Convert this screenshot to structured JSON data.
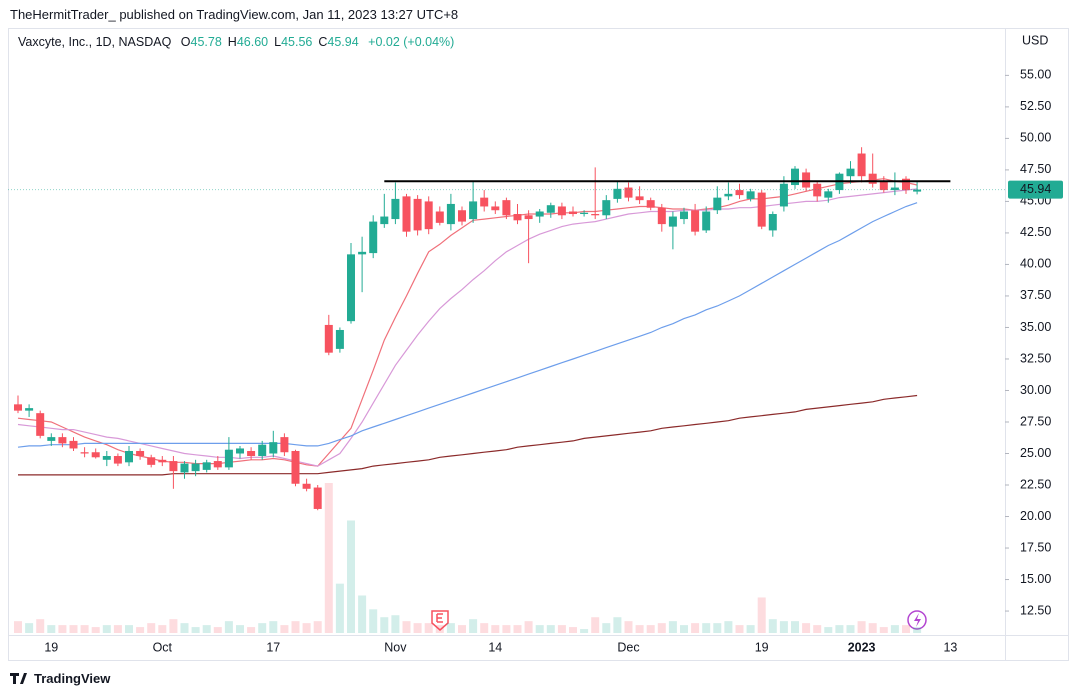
{
  "header": {
    "publisher": "TheHermitTrader_ published on TradingView.com, Jan 11, 2023 13:27 UTC+8",
    "symbol": "Vaxcyte, Inc., 1D, NASDAQ",
    "ohlc": [
      {
        "key": "O",
        "value": "45.78"
      },
      {
        "key": "H",
        "value": "46.60"
      },
      {
        "key": "L",
        "value": "45.56"
      },
      {
        "key": "C",
        "value": "45.94"
      }
    ],
    "change": "+0.02 (+0.04%)"
  },
  "footer": {
    "brand": "TradingView"
  },
  "chart_data": {
    "type": "candlestick",
    "currency": "USD",
    "up_color": "#22ab94",
    "down_color": "#f7525f",
    "categories": [
      null,
      null,
      null,
      "19",
      null,
      null,
      null,
      null,
      null,
      null,
      null,
      null,
      null,
      "Oct",
      null,
      null,
      null,
      null,
      null,
      null,
      null,
      null,
      null,
      "17",
      null,
      null,
      null,
      null,
      null,
      null,
      null,
      null,
      null,
      null,
      "Nov",
      null,
      null,
      null,
      null,
      null,
      null,
      null,
      null,
      "14",
      null,
      null,
      null,
      null,
      null,
      null,
      null,
      null,
      null,
      null,
      null,
      "Dec",
      null,
      null,
      null,
      null,
      null,
      null,
      null,
      null,
      null,
      null,
      null,
      "19",
      null,
      null,
      null,
      null,
      null,
      null,
      null,
      null,
      "2023",
      null,
      null,
      null,
      null,
      null,
      null,
      null,
      "13"
    ],
    "open": [
      28.9,
      28.4,
      28.2,
      26.0,
      26.3,
      26.0,
      25.1,
      25.1,
      24.5,
      24.8,
      24.3,
      25.2,
      24.7,
      24.5,
      24.4,
      23.5,
      23.6,
      23.7,
      24.4,
      23.9,
      25.0,
      25.2,
      24.8,
      25.0,
      26.3,
      25.2,
      22.6,
      22.3,
      35.2,
      33.3,
      35.5,
      40.8,
      40.9,
      43.2,
      43.6,
      45.4,
      45.2,
      45.0,
      44.2,
      43.2,
      44.3,
      43.6,
      45.3,
      44.6,
      45.1,
      44.0,
      43.9,
      43.8,
      44.1,
      44.6,
      44.2,
      44.0,
      44.0,
      43.9,
      45.2,
      46.1,
      45.4,
      45.1,
      44.5,
      43.0,
      43.6,
      44.3,
      42.7,
      44.3,
      45.4,
      45.9,
      45.2,
      45.7,
      42.7,
      44.6,
      46.3,
      47.3,
      46.4,
      45.3,
      45.9,
      47.0,
      48.8,
      47.2,
      46.6,
      45.9,
      46.8,
      45.78,
      null,
      null,
      null
    ],
    "high": [
      29.6,
      28.9,
      28.4,
      26.6,
      26.6,
      26.3,
      25.5,
      25.4,
      25.2,
      25.0,
      25.6,
      25.4,
      24.9,
      24.8,
      24.8,
      24.4,
      24.5,
      24.5,
      24.8,
      26.3,
      25.6,
      25.5,
      26.0,
      26.8,
      26.6,
      25.3,
      23.0,
      22.5,
      36.0,
      35.0,
      41.7,
      42.2,
      43.9,
      45.6,
      46.5,
      45.6,
      45.5,
      45.4,
      44.6,
      45.6,
      44.6,
      46.6,
      45.9,
      45.0,
      45.3,
      44.8,
      44.3,
      44.4,
      44.9,
      44.9,
      44.6,
      44.3,
      47.7,
      45.5,
      46.6,
      46.5,
      46.2,
      45.3,
      44.8,
      44.2,
      44.5,
      44.8,
      44.6,
      46.2,
      46.5,
      46.4,
      46.0,
      45.9,
      44.2,
      47.0,
      47.8,
      47.6,
      46.6,
      46.0,
      47.3,
      48.2,
      49.3,
      48.8,
      47.0,
      47.3,
      47.0,
      46.6,
      null,
      null,
      null
    ],
    "low": [
      28.2,
      27.9,
      26.2,
      25.6,
      25.5,
      25.2,
      24.7,
      24.6,
      24.0,
      24.0,
      24.0,
      24.5,
      23.9,
      24.0,
      22.2,
      23.0,
      23.2,
      23.5,
      23.7,
      23.7,
      24.6,
      24.5,
      24.5,
      24.7,
      24.8,
      22.4,
      22.0,
      20.5,
      32.8,
      33.0,
      35.3,
      37.8,
      40.5,
      42.9,
      43.2,
      42.2,
      42.3,
      42.4,
      43.1,
      42.7,
      43.1,
      43.3,
      44.2,
      44.0,
      43.6,
      43.2,
      40.1,
      43.3,
      43.7,
      43.6,
      43.8,
      43.8,
      43.6,
      43.6,
      44.9,
      45.0,
      44.8,
      44.3,
      42.6,
      41.2,
      43.2,
      42.3,
      42.5,
      44.0,
      45.1,
      45.2,
      45.0,
      42.8,
      42.2,
      44.2,
      46.0,
      45.8,
      45.0,
      44.9,
      45.6,
      46.4,
      46.5,
      46.1,
      45.7,
      45.5,
      45.6,
      45.56,
      null,
      null,
      null
    ],
    "close": [
      28.4,
      28.6,
      26.4,
      26.3,
      25.8,
      25.4,
      25.0,
      24.7,
      24.8,
      24.2,
      25.2,
      24.8,
      24.1,
      24.3,
      23.6,
      24.2,
      24.2,
      24.3,
      23.9,
      25.3,
      25.4,
      24.8,
      25.7,
      25.9,
      25.1,
      22.6,
      22.2,
      20.6,
      33.0,
      34.8,
      40.8,
      41.0,
      43.4,
      43.8,
      45.2,
      42.6,
      42.7,
      42.8,
      43.3,
      44.8,
      43.4,
      45.0,
      44.6,
      44.3,
      43.9,
      43.5,
      43.6,
      44.2,
      44.7,
      43.9,
      44.0,
      44.1,
      43.9,
      45.1,
      46.0,
      45.3,
      45.1,
      44.5,
      43.2,
      43.8,
      44.2,
      42.6,
      44.2,
      45.3,
      45.6,
      45.5,
      45.8,
      43.0,
      44.0,
      46.4,
      47.6,
      46.1,
      45.4,
      45.8,
      47.2,
      47.6,
      47.0,
      46.4,
      45.9,
      46.1,
      45.9,
      45.94,
      null,
      null,
      null
    ],
    "volume": [
      0.6,
      0.5,
      0.7,
      0.4,
      0.4,
      0.4,
      0.4,
      0.3,
      0.4,
      0.4,
      0.4,
      0.3,
      0.5,
      0.4,
      0.7,
      0.5,
      0.3,
      0.4,
      0.3,
      0.6,
      0.4,
      0.3,
      0.5,
      0.6,
      0.4,
      0.6,
      0.5,
      0.6,
      7.6,
      2.5,
      5.7,
      1.9,
      1.2,
      0.8,
      0.9,
      0.6,
      0.5,
      0.5,
      0.4,
      0.5,
      0.4,
      0.7,
      0.5,
      0.4,
      0.4,
      0.4,
      0.6,
      0.4,
      0.4,
      0.4,
      0.3,
      0.2,
      0.8,
      0.5,
      0.8,
      0.6,
      0.4,
      0.4,
      0.5,
      0.6,
      0.4,
      0.5,
      0.5,
      0.5,
      0.6,
      0.4,
      0.4,
      1.8,
      0.7,
      0.6,
      0.6,
      0.5,
      0.4,
      0.3,
      0.4,
      0.4,
      0.6,
      0.5,
      0.3,
      0.4,
      0.4,
      0.3,
      null,
      null,
      null
    ],
    "series": [
      {
        "color": "#f0707a",
        "values": [
          27.8,
          27.7,
          27.6,
          27.5,
          27.1,
          26.7,
          26.3,
          26.0,
          25.7,
          25.3,
          25.0,
          24.8,
          24.6,
          24.4,
          24.3,
          24.3,
          24.2,
          24.2,
          24.2,
          24.3,
          24.4,
          24.5,
          24.5,
          24.6,
          24.5,
          24.3,
          24.1,
          24.0,
          25.0,
          26.0,
          27.0,
          29.3,
          31.6,
          34.0,
          35.8,
          37.5,
          39.3,
          41.0,
          41.6,
          42.3,
          42.9,
          43.5,
          43.6,
          43.7,
          43.8,
          43.9,
          44.0,
          44.0,
          44.0,
          44.1,
          44.1,
          44.2,
          44.2,
          44.3,
          44.4,
          44.5,
          44.6,
          44.6,
          44.5,
          44.4,
          44.4,
          44.3,
          44.4,
          44.5,
          44.7,
          45.0,
          45.2,
          45.2,
          45.3,
          45.4,
          45.6,
          45.8,
          46.0,
          46.2,
          46.4,
          46.5,
          46.6,
          46.7,
          46.8,
          46.6,
          46.5,
          46.3,
          null,
          null,
          null
        ]
      },
      {
        "color": "#d899d8",
        "values": [
          27.3,
          27.2,
          27.1,
          27.0,
          26.9,
          26.9,
          26.7,
          26.5,
          26.3,
          26.2,
          26.0,
          25.8,
          25.6,
          25.4,
          25.2,
          25.0,
          24.9,
          24.8,
          24.7,
          24.7,
          24.6,
          24.7,
          24.7,
          24.8,
          24.6,
          24.4,
          24.2,
          24.0,
          24.5,
          25.0,
          26.2,
          27.5,
          29.0,
          30.5,
          32.0,
          33.2,
          34.4,
          35.5,
          36.5,
          37.3,
          38.0,
          38.8,
          39.5,
          40.3,
          41.0,
          41.5,
          42.0,
          42.4,
          42.7,
          43.0,
          43.2,
          43.3,
          43.4,
          43.6,
          43.8,
          44.0,
          44.1,
          44.2,
          44.2,
          44.2,
          44.3,
          44.3,
          44.3,
          44.4,
          44.4,
          44.5,
          44.5,
          44.6,
          44.7,
          44.8,
          44.9,
          45.0,
          45.0,
          45.1,
          45.3,
          45.4,
          45.5,
          45.6,
          45.7,
          45.8,
          45.9,
          46.0,
          null,
          null,
          null
        ]
      },
      {
        "color": "#6d9eeb",
        "values": [
          25.5,
          25.6,
          25.6,
          25.7,
          25.7,
          25.7,
          25.8,
          25.8,
          25.8,
          25.8,
          25.8,
          25.8,
          25.8,
          25.8,
          25.8,
          25.8,
          25.8,
          25.8,
          25.8,
          25.8,
          25.8,
          25.8,
          25.8,
          25.8,
          25.8,
          25.7,
          25.6,
          25.6,
          25.8,
          26.1,
          26.4,
          26.8,
          27.1,
          27.4,
          27.7,
          28.0,
          28.3,
          28.6,
          28.9,
          29.2,
          29.5,
          29.8,
          30.1,
          30.4,
          30.7,
          31.0,
          31.3,
          31.6,
          31.9,
          32.2,
          32.5,
          32.8,
          33.1,
          33.4,
          33.7,
          34.0,
          34.3,
          34.6,
          35.0,
          35.3,
          35.7,
          36.0,
          36.4,
          36.7,
          37.1,
          37.5,
          38.0,
          38.5,
          39.0,
          39.5,
          40.0,
          40.5,
          41.0,
          41.5,
          41.9,
          42.4,
          42.9,
          43.4,
          43.8,
          44.2,
          44.6,
          44.9,
          null,
          null,
          null
        ]
      },
      {
        "color": "#8b2a2a",
        "values": [
          23.3,
          23.3,
          23.3,
          23.3,
          23.3,
          23.3,
          23.3,
          23.3,
          23.3,
          23.3,
          23.3,
          23.3,
          23.3,
          23.3,
          23.4,
          23.4,
          23.4,
          23.4,
          23.4,
          23.4,
          23.4,
          23.4,
          23.4,
          23.4,
          23.4,
          23.4,
          23.4,
          23.4,
          23.5,
          23.6,
          23.7,
          23.8,
          24.0,
          24.1,
          24.2,
          24.3,
          24.4,
          24.5,
          24.7,
          24.8,
          24.9,
          25.0,
          25.1,
          25.2,
          25.3,
          25.5,
          25.6,
          25.7,
          25.8,
          25.9,
          26.0,
          26.2,
          26.3,
          26.4,
          26.5,
          26.6,
          26.7,
          26.8,
          27.0,
          27.1,
          27.2,
          27.3,
          27.4,
          27.5,
          27.6,
          27.8,
          27.9,
          28.0,
          28.1,
          28.2,
          28.3,
          28.5,
          28.6,
          28.7,
          28.8,
          28.9,
          29.0,
          29.1,
          29.3,
          29.4,
          29.5,
          29.6,
          null,
          null,
          null
        ]
      }
    ],
    "levels": [
      {
        "value": 46.6,
        "from": 33,
        "to": 84,
        "color": "#000000"
      }
    ],
    "ylim": [
      10.6,
      58.6
    ],
    "yticks": [
      {
        "value": 12.5,
        "label": "12.50"
      },
      {
        "value": 15,
        "label": "15.00"
      },
      {
        "value": 17.5,
        "label": "17.50"
      },
      {
        "value": 20,
        "label": "20.00"
      },
      {
        "value": 22.5,
        "label": "22.50"
      },
      {
        "value": 25,
        "label": "25.00"
      },
      {
        "value": 27.5,
        "label": "27.50"
      },
      {
        "value": 30,
        "label": "30.00"
      },
      {
        "value": 32.5,
        "label": "32.50"
      },
      {
        "value": 35,
        "label": "35.00"
      },
      {
        "value": 37.5,
        "label": "37.50"
      },
      {
        "value": 40,
        "label": "40.00"
      },
      {
        "value": 42.5,
        "label": "42.50"
      },
      {
        "value": 45,
        "label": "45.00"
      },
      {
        "value": 47.5,
        "label": "47.50"
      },
      {
        "value": 50,
        "label": "50.00"
      },
      {
        "value": 52.5,
        "label": "52.50"
      },
      {
        "value": 55,
        "label": "55.00"
      }
    ],
    "grid": false
  }
}
